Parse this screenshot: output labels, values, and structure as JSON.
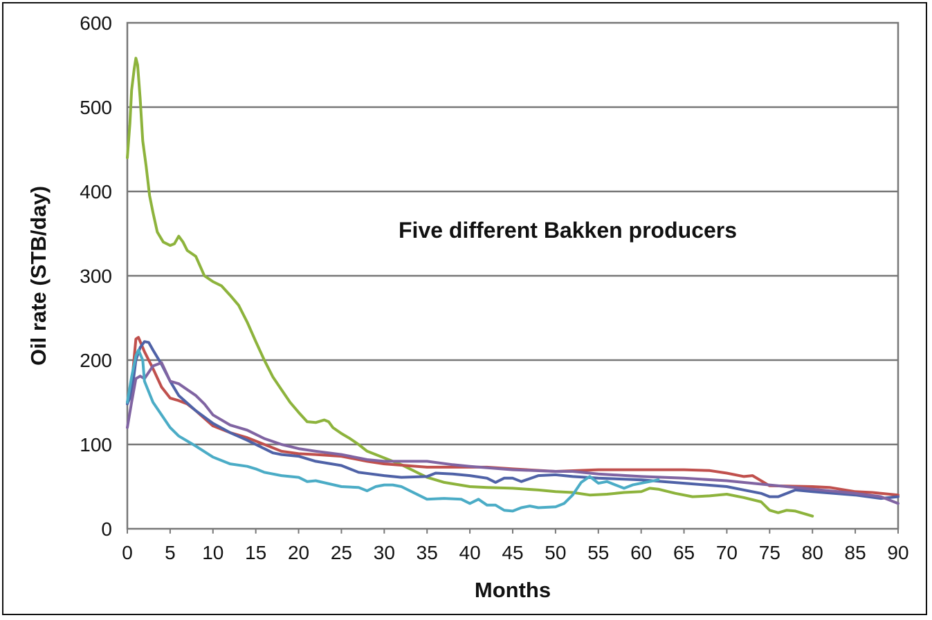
{
  "chart_data": {
    "type": "line",
    "title": "",
    "annotation": "Five different Bakken producers",
    "xlabel": "Months",
    "ylabel": "Oil rate (STB/day)",
    "xlim": [
      0,
      90
    ],
    "ylim": [
      0,
      600
    ],
    "x_ticks": [
      "0",
      "5",
      "10",
      "15",
      "20",
      "25",
      "30",
      "35",
      "40",
      "45",
      "50",
      "55",
      "60",
      "65",
      "70",
      "75",
      "80",
      "85",
      "90"
    ],
    "y_ticks": [
      "0",
      "100",
      "200",
      "300",
      "400",
      "500",
      "600"
    ],
    "grid": "horizontal",
    "legend": "none",
    "series": [
      {
        "color": "#8db33c",
        "points": [
          [
            0,
            440
          ],
          [
            0.3,
            480
          ],
          [
            0.5,
            520
          ],
          [
            0.8,
            545
          ],
          [
            1.0,
            558
          ],
          [
            1.2,
            550
          ],
          [
            1.5,
            510
          ],
          [
            1.8,
            460
          ],
          [
            2.2,
            430
          ],
          [
            2.6,
            395
          ],
          [
            3.0,
            375
          ],
          [
            3.5,
            352
          ],
          [
            4.2,
            340
          ],
          [
            5.0,
            336
          ],
          [
            5.5,
            338
          ],
          [
            6.0,
            347
          ],
          [
            6.5,
            340
          ],
          [
            7,
            330
          ],
          [
            8,
            323
          ],
          [
            9,
            300
          ],
          [
            10,
            293
          ],
          [
            11,
            288
          ],
          [
            12,
            277
          ],
          [
            13,
            265
          ],
          [
            14,
            245
          ],
          [
            15,
            222
          ],
          [
            16,
            200
          ],
          [
            17,
            180
          ],
          [
            18,
            165
          ],
          [
            19,
            150
          ],
          [
            20,
            138
          ],
          [
            21,
            127
          ],
          [
            22,
            126
          ],
          [
            23,
            129
          ],
          [
            23.5,
            127
          ],
          [
            24,
            120
          ],
          [
            25,
            113
          ],
          [
            26,
            107
          ],
          [
            27,
            100
          ],
          [
            28,
            92
          ],
          [
            29,
            88
          ],
          [
            30,
            84
          ],
          [
            31,
            80
          ],
          [
            32,
            76
          ],
          [
            33,
            71
          ],
          [
            34,
            66
          ],
          [
            35,
            61
          ],
          [
            37,
            55
          ],
          [
            40,
            50
          ],
          [
            42,
            49
          ],
          [
            45,
            48
          ],
          [
            48,
            46
          ],
          [
            50,
            44
          ],
          [
            52,
            43
          ],
          [
            54,
            40
          ],
          [
            56,
            41
          ],
          [
            58,
            43
          ],
          [
            60,
            44
          ],
          [
            61,
            48
          ],
          [
            62,
            47
          ],
          [
            64,
            42
          ],
          [
            66,
            38
          ],
          [
            68,
            39
          ],
          [
            70,
            41
          ],
          [
            72,
            37
          ],
          [
            74,
            32
          ],
          [
            75,
            22
          ],
          [
            76,
            19
          ],
          [
            77,
            22
          ],
          [
            78,
            21
          ],
          [
            80,
            15
          ]
        ]
      },
      {
        "color": "#c0504d",
        "points": [
          [
            0,
            150
          ],
          [
            0.5,
            170
          ],
          [
            1,
            225
          ],
          [
            1.3,
            227
          ],
          [
            2,
            210
          ],
          [
            3,
            190
          ],
          [
            4,
            168
          ],
          [
            5,
            155
          ],
          [
            6,
            152
          ],
          [
            7,
            148
          ],
          [
            8,
            140
          ],
          [
            10,
            122
          ],
          [
            12,
            114
          ],
          [
            14,
            108
          ],
          [
            16,
            100
          ],
          [
            18,
            92
          ],
          [
            20,
            89
          ],
          [
            22,
            88
          ],
          [
            25,
            86
          ],
          [
            28,
            80
          ],
          [
            30,
            77
          ],
          [
            35,
            73
          ],
          [
            40,
            73
          ],
          [
            42,
            73
          ],
          [
            45,
            71
          ],
          [
            50,
            68
          ],
          [
            55,
            70
          ],
          [
            60,
            70
          ],
          [
            65,
            70
          ],
          [
            68,
            69
          ],
          [
            70,
            66
          ],
          [
            72,
            62
          ],
          [
            73,
            63
          ],
          [
            75,
            51
          ],
          [
            80,
            50
          ],
          [
            82,
            49
          ],
          [
            85,
            44
          ],
          [
            87,
            43
          ],
          [
            88,
            42
          ],
          [
            90,
            40
          ]
        ]
      },
      {
        "color": "#4f62a7",
        "points": [
          [
            0,
            148
          ],
          [
            0.5,
            160
          ],
          [
            1,
            200
          ],
          [
            1.5,
            215
          ],
          [
            2,
            222
          ],
          [
            2.5,
            221
          ],
          [
            3,
            212
          ],
          [
            4,
            195
          ],
          [
            5,
            175
          ],
          [
            6,
            158
          ],
          [
            8,
            140
          ],
          [
            10,
            125
          ],
          [
            12,
            114
          ],
          [
            14,
            105
          ],
          [
            16,
            95
          ],
          [
            17,
            90
          ],
          [
            18,
            88
          ],
          [
            20,
            86
          ],
          [
            22,
            80
          ],
          [
            25,
            75
          ],
          [
            27,
            67
          ],
          [
            30,
            63
          ],
          [
            32,
            61
          ],
          [
            35,
            62
          ],
          [
            36,
            66
          ],
          [
            38,
            65
          ],
          [
            40,
            63
          ],
          [
            42,
            60
          ],
          [
            43,
            55
          ],
          [
            44,
            60
          ],
          [
            45,
            60
          ],
          [
            46,
            56
          ],
          [
            48,
            63
          ],
          [
            50,
            64
          ],
          [
            52,
            62
          ],
          [
            55,
            60
          ],
          [
            60,
            58
          ],
          [
            65,
            54
          ],
          [
            70,
            50
          ],
          [
            72,
            46
          ],
          [
            74,
            42
          ],
          [
            75,
            38
          ],
          [
            76,
            38
          ],
          [
            78,
            46
          ],
          [
            80,
            44
          ],
          [
            85,
            40
          ],
          [
            88,
            36
          ],
          [
            90,
            38
          ]
        ]
      },
      {
        "color": "#8064a2",
        "points": [
          [
            0,
            120
          ],
          [
            0.5,
            150
          ],
          [
            1,
            178
          ],
          [
            1.5,
            181
          ],
          [
            2,
            178
          ],
          [
            3,
            193
          ],
          [
            4,
            197
          ],
          [
            5,
            175
          ],
          [
            6,
            172
          ],
          [
            7,
            165
          ],
          [
            8,
            158
          ],
          [
            9,
            148
          ],
          [
            10,
            135
          ],
          [
            12,
            123
          ],
          [
            14,
            117
          ],
          [
            16,
            107
          ],
          [
            18,
            100
          ],
          [
            20,
            95
          ],
          [
            22,
            92
          ],
          [
            25,
            88
          ],
          [
            28,
            82
          ],
          [
            30,
            80
          ],
          [
            35,
            80
          ],
          [
            38,
            76
          ],
          [
            40,
            74
          ],
          [
            45,
            70
          ],
          [
            50,
            68
          ],
          [
            52,
            68
          ],
          [
            55,
            65
          ],
          [
            60,
            62
          ],
          [
            65,
            60
          ],
          [
            70,
            57
          ],
          [
            75,
            52
          ],
          [
            80,
            47
          ],
          [
            85,
            42
          ],
          [
            88,
            38
          ],
          [
            90,
            30
          ]
        ]
      },
      {
        "color": "#4bacc6",
        "points": [
          [
            0,
            150
          ],
          [
            0.5,
            180
          ],
          [
            1,
            205
          ],
          [
            1.3,
            212
          ],
          [
            1.8,
            200
          ],
          [
            2,
            175
          ],
          [
            3,
            150
          ],
          [
            4,
            135
          ],
          [
            5,
            120
          ],
          [
            6,
            110
          ],
          [
            8,
            98
          ],
          [
            10,
            85
          ],
          [
            12,
            77
          ],
          [
            14,
            74
          ],
          [
            15,
            71
          ],
          [
            16,
            67
          ],
          [
            18,
            63
          ],
          [
            20,
            61
          ],
          [
            21,
            56
          ],
          [
            22,
            57
          ],
          [
            25,
            50
          ],
          [
            27,
            49
          ],
          [
            28,
            45
          ],
          [
            29,
            50
          ],
          [
            30,
            52
          ],
          [
            31,
            52
          ],
          [
            32,
            50
          ],
          [
            34,
            40
          ],
          [
            35,
            35
          ],
          [
            37,
            36
          ],
          [
            39,
            35
          ],
          [
            40,
            30
          ],
          [
            41,
            35
          ],
          [
            42,
            28
          ],
          [
            43,
            28
          ],
          [
            44,
            22
          ],
          [
            45,
            21
          ],
          [
            46,
            25
          ],
          [
            47,
            27
          ],
          [
            48,
            25
          ],
          [
            50,
            26
          ],
          [
            51,
            30
          ],
          [
            52,
            40
          ],
          [
            53,
            55
          ],
          [
            54,
            62
          ],
          [
            55,
            54
          ],
          [
            56,
            56
          ],
          [
            57,
            52
          ],
          [
            58,
            48
          ],
          [
            59,
            52
          ],
          [
            60,
            54
          ],
          [
            61,
            56
          ],
          [
            62,
            58
          ]
        ]
      }
    ]
  }
}
